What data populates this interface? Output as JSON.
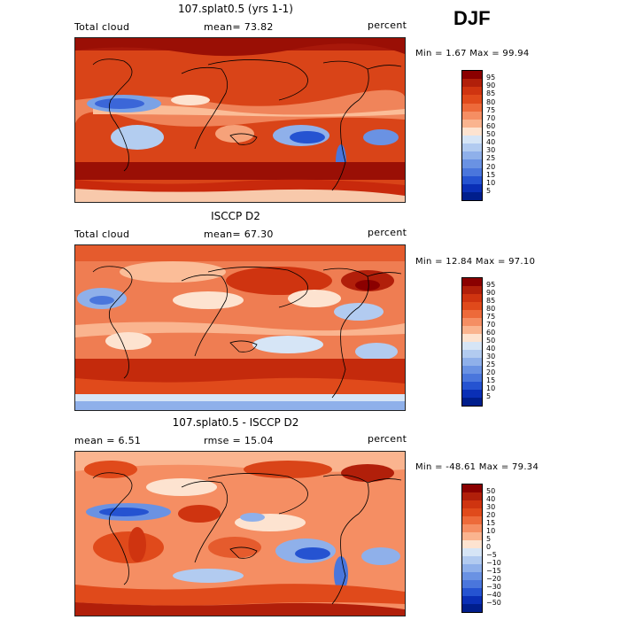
{
  "season": "DJF",
  "panels": [
    {
      "title": "107.splat0.5 (yrs 1-1)",
      "left_label": "Total cloud",
      "center_label": "mean=  73.82",
      "right_label": "percent",
      "minmax": "Min =   1.67 Max =  99.94",
      "colorbar": {
        "labels": [
          "95",
          "90",
          "85",
          "80",
          "75",
          "70",
          "60",
          "50",
          "40",
          "30",
          "25",
          "20",
          "15",
          "10",
          "5"
        ],
        "colors": [
          "#8b0000",
          "#b11f0a",
          "#cf3410",
          "#e04a1b",
          "#ed6a3a",
          "#f58e63",
          "#fab48f",
          "#fde3d0",
          "#d6e5f6",
          "#b2cbf0",
          "#8fb0ea",
          "#6a92e3",
          "#4a76dc",
          "#2553d1",
          "#0a2fb6",
          "#001e8c"
        ]
      }
    },
    {
      "title": "ISCCP D2",
      "left_label": "Total cloud",
      "center_label": "mean=  67.30",
      "right_label": "percent",
      "minmax": "Min =  12.84 Max =  97.10",
      "colorbar": {
        "labels": [
          "95",
          "90",
          "85",
          "80",
          "75",
          "70",
          "60",
          "50",
          "40",
          "30",
          "25",
          "20",
          "15",
          "10",
          "5"
        ],
        "colors": [
          "#8b0000",
          "#b11f0a",
          "#cf3410",
          "#e04a1b",
          "#ed6a3a",
          "#f58e63",
          "#fab48f",
          "#fde3d0",
          "#d6e5f6",
          "#b2cbf0",
          "#8fb0ea",
          "#6a92e3",
          "#4a76dc",
          "#2553d1",
          "#0a2fb6",
          "#001e8c"
        ]
      }
    },
    {
      "title": "107.splat0.5 - ISCCP D2",
      "left_label": "mean =    6.51",
      "center_label": "rmse =  15.04",
      "right_label": "percent",
      "minmax": "Min = -48.61 Max =  79.34",
      "colorbar": {
        "labels": [
          "50",
          "40",
          "30",
          "20",
          "15",
          "10",
          "5",
          "0",
          "−5",
          "−10",
          "−15",
          "−20",
          "−30",
          "−40",
          "−50"
        ],
        "colors": [
          "#8b0000",
          "#b11f0a",
          "#cf3410",
          "#e04a1b",
          "#ed6a3a",
          "#f58e63",
          "#fab48f",
          "#fde3d0",
          "#d6e5f6",
          "#b2cbf0",
          "#8fb0ea",
          "#6a92e3",
          "#4a76dc",
          "#2553d1",
          "#0a2fb6",
          "#001e8c"
        ]
      }
    }
  ]
}
